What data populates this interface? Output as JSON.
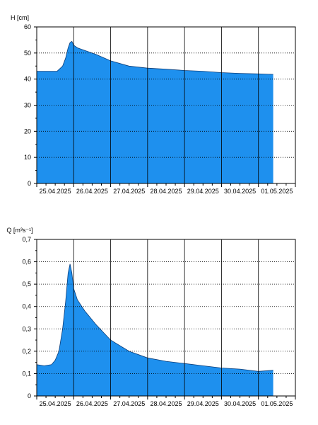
{
  "colors": {
    "fill": "#1E90EE",
    "outline": "#0A3C78",
    "axis": "#000000",
    "grid": "#000000"
  },
  "chart_data": [
    {
      "type": "area",
      "ylabel": "H [cm]",
      "xlabel": "",
      "ylim": [
        0,
        60
      ],
      "yticks": [
        "0",
        "10",
        "20",
        "30",
        "40",
        "50",
        "60"
      ],
      "xticks": [
        "25.04.2025",
        "26.04.2025",
        "27.04.2025",
        "28.04.2025",
        "29.04.2025",
        "30.04.2025",
        "01.05.2025"
      ],
      "grid": "dotted horizontal, solid vertical at day boundaries",
      "legend": "none",
      "x_days": [
        0.0,
        0.3,
        0.55,
        0.7,
        0.78,
        0.85,
        0.9,
        0.95,
        1.0,
        1.1,
        1.3,
        1.6,
        2.0,
        2.5,
        3.0,
        3.5,
        4.0,
        4.5,
        5.0,
        5.5,
        6.0,
        6.4
      ],
      "values": [
        43,
        43,
        43,
        45,
        48,
        52,
        54,
        54.5,
        53,
        52,
        51,
        49.5,
        47,
        45,
        44.2,
        43.8,
        43.3,
        43,
        42.5,
        42.2,
        42,
        41.8
      ]
    },
    {
      "type": "area",
      "ylabel": "Q [m³s⁻¹]",
      "xlabel": "",
      "ylim": [
        0,
        0.7
      ],
      "yticks": [
        "0",
        "0,1",
        "0,2",
        "0,3",
        "0,4",
        "0,5",
        "0,6",
        "0,7"
      ],
      "xticks": [
        "25.04.2025",
        "26.04.2025",
        "27.04.2025",
        "28.04.2025",
        "29.04.2025",
        "30.04.2025",
        "01.05.2025"
      ],
      "grid": "dotted horizontal, solid vertical at day boundaries",
      "legend": "none",
      "x_days": [
        0.0,
        0.2,
        0.4,
        0.5,
        0.6,
        0.7,
        0.78,
        0.85,
        0.9,
        0.95,
        1.0,
        1.1,
        1.3,
        1.6,
        2.0,
        2.5,
        3.0,
        3.5,
        4.0,
        4.5,
        5.0,
        5.5,
        6.0,
        6.4
      ],
      "values": [
        0.14,
        0.135,
        0.14,
        0.16,
        0.2,
        0.3,
        0.42,
        0.55,
        0.59,
        0.55,
        0.48,
        0.43,
        0.38,
        0.32,
        0.25,
        0.2,
        0.17,
        0.155,
        0.145,
        0.135,
        0.125,
        0.12,
        0.11,
        0.115
      ]
    }
  ]
}
